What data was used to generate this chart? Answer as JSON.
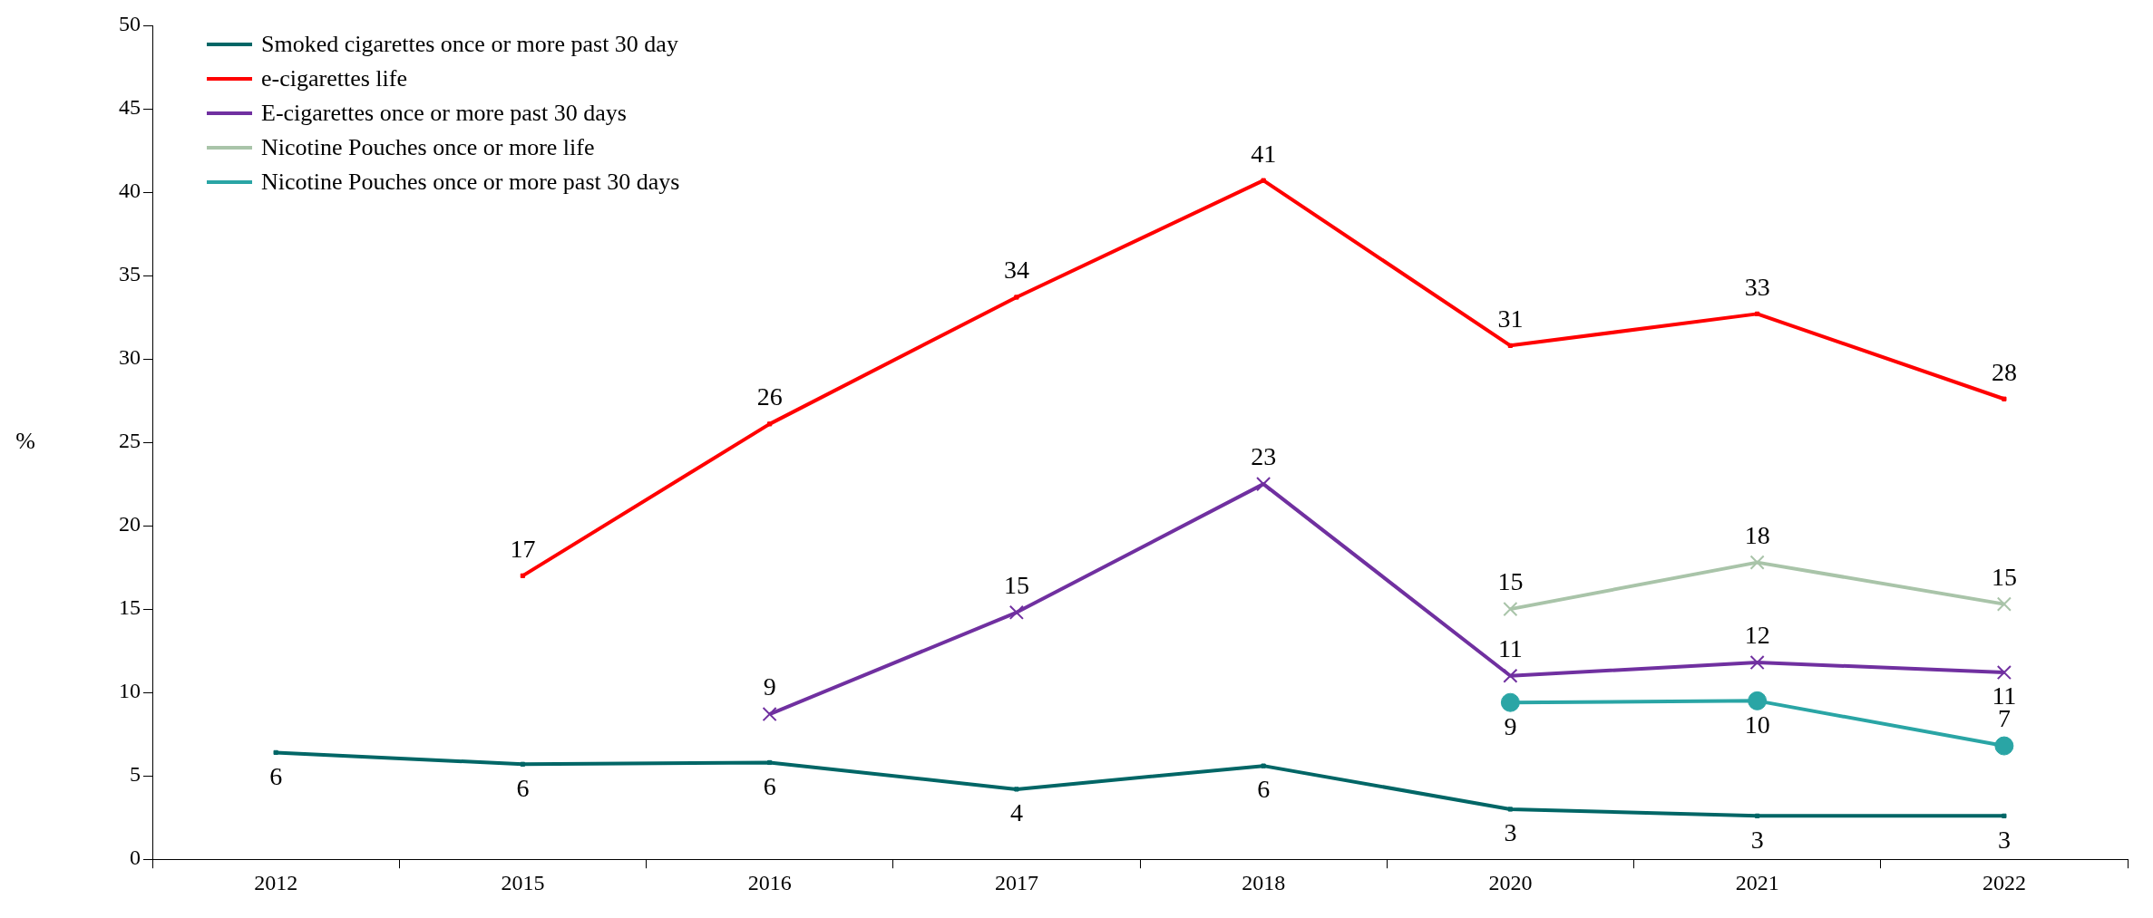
{
  "chart_data": {
    "type": "line",
    "ylabel": "%",
    "categories": [
      "2012",
      "2015",
      "2016",
      "2017",
      "2018",
      "2020",
      "2021",
      "2022"
    ],
    "ylim": [
      0,
      50
    ],
    "yticks": [
      0,
      5,
      10,
      15,
      20,
      25,
      30,
      35,
      40,
      45,
      50
    ],
    "grid": false,
    "legend": "top left",
    "series": [
      {
        "name": "Smoked cigarettes once or more past 30 day",
        "color": "#006666",
        "marker": "square",
        "values": [
          6.4,
          5.7,
          5.8,
          4.2,
          5.6,
          3.0,
          2.6,
          2.6
        ],
        "value_labels": [
          "6",
          "6",
          "6",
          "4",
          "6",
          "3",
          "3",
          "3"
        ]
      },
      {
        "name": "e-cigarettes life",
        "color": "#ff0000",
        "marker": "square",
        "values": [
          null,
          17.0,
          26.1,
          33.7,
          40.7,
          30.8,
          32.7,
          27.6
        ],
        "value_labels": [
          null,
          "17",
          "26",
          "34",
          "41",
          "31",
          "33",
          "28"
        ]
      },
      {
        "name": "E-cigarettes once or more past 30 days",
        "color": "#7030a0",
        "marker": "cross",
        "values": [
          null,
          null,
          8.7,
          14.8,
          22.5,
          11.0,
          11.8,
          11.2
        ],
        "value_labels": [
          null,
          null,
          "9",
          "15",
          "23",
          "11",
          "12",
          "11"
        ]
      },
      {
        "name": "Nicotine Pouches once or more life",
        "color": "#a9c4a9",
        "marker": "cross",
        "values": [
          null,
          null,
          null,
          null,
          null,
          15.0,
          17.8,
          15.3
        ],
        "value_labels": [
          null,
          null,
          null,
          null,
          null,
          "15",
          "18",
          "15"
        ]
      },
      {
        "name": "Nicotine Pouches once or more past 30 days",
        "color": "#2aa5a5",
        "marker": "circle",
        "values": [
          null,
          null,
          null,
          null,
          null,
          9.4,
          9.5,
          6.8
        ],
        "value_labels": [
          null,
          null,
          null,
          null,
          null,
          "9",
          "10",
          "7"
        ]
      }
    ]
  }
}
